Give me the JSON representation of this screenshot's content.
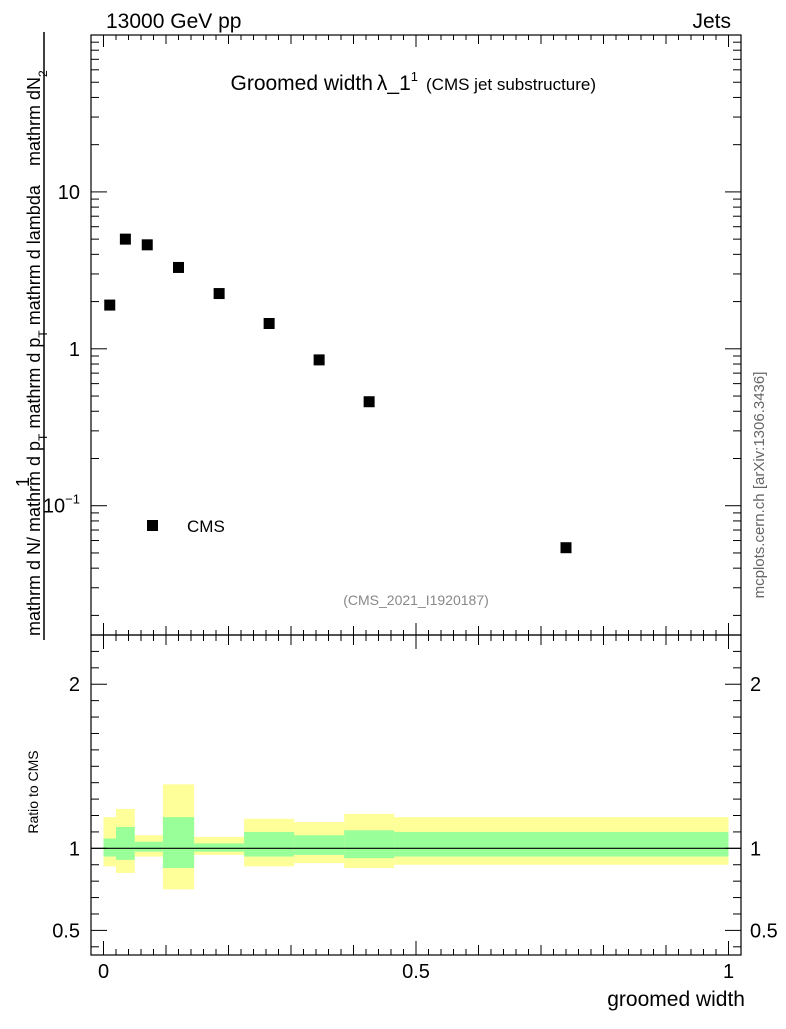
{
  "header": {
    "energy_label": "13000 GeV pp",
    "process_label": "Jets"
  },
  "side_label": "mcplots.cern.ch [arXiv:1306.3436]",
  "chart_data": [
    {
      "type": "scatter",
      "title": "Groomed width",
      "title_symbol": "λ_1",
      "title_superscript": "1",
      "subtitle": "(CMS jet substructure)",
      "analysis_tag": "(CMS_2021_I1920187)",
      "ylabel_numerator_parts": [
        {
          "t": "mathrm d",
          "s": ""
        },
        {
          "t": "N",
          "s": "2"
        }
      ],
      "ylabel_denominator_parts": [
        {
          "t": "mathrm d N",
          "s": ""
        },
        {
          "t": "/ mathrm d p",
          "s": "T"
        },
        {
          "t": " mathrm d p",
          "s": "T"
        },
        {
          "t": " mathrm d lambda",
          "s": ""
        }
      ],
      "ylabel_prefix": "1",
      "yscale": "log",
      "ylim": [
        0.015,
        100
      ],
      "xlim": [
        -0.02,
        1.02
      ],
      "yticks": [
        {
          "value": 0.1,
          "label": "10",
          "sup": "−1"
        },
        {
          "value": 1,
          "label": "1",
          "sup": ""
        },
        {
          "value": 10,
          "label": "10",
          "sup": ""
        }
      ],
      "series": [
        {
          "name": "CMS",
          "marker": "square",
          "color": "#000000",
          "x": [
            0.01,
            0.035,
            0.07,
            0.12,
            0.185,
            0.265,
            0.345,
            0.425,
            0.74
          ],
          "y": [
            1.9,
            5.0,
            4.6,
            3.3,
            2.25,
            1.45,
            0.85,
            0.46,
            0.054
          ]
        }
      ],
      "legend": "bottom-left"
    },
    {
      "type": "area",
      "ylabel": "Ratio to CMS",
      "xlabel": "groomed width",
      "ylim": [
        0.35,
        2.3
      ],
      "xlim": [
        -0.02,
        1.02
      ],
      "reference_line": 1,
      "xticks": [
        {
          "value": 0,
          "label": "0"
        },
        {
          "value": 0.5,
          "label": "0.5"
        },
        {
          "value": 1,
          "label": "1"
        }
      ],
      "yticks": [
        {
          "value": 0.5,
          "label": "0.5"
        },
        {
          "value": 1,
          "label": "1"
        },
        {
          "value": 2,
          "label": "2"
        }
      ],
      "bands": {
        "inner_color": "#99ff99",
        "outer_color": "#ffff99",
        "bins": [
          {
            "x0": 0.0,
            "x1": 0.02,
            "inner": [
              0.95,
              1.06
            ],
            "outer": [
              0.89,
              1.19
            ]
          },
          {
            "x0": 0.02,
            "x1": 0.05,
            "inner": [
              0.93,
              1.13
            ],
            "outer": [
              0.85,
              1.24
            ]
          },
          {
            "x0": 0.05,
            "x1": 0.095,
            "inner": [
              0.98,
              1.04
            ],
            "outer": [
              0.95,
              1.08
            ]
          },
          {
            "x0": 0.095,
            "x1": 0.145,
            "inner": [
              0.88,
              1.19
            ],
            "outer": [
              0.75,
              1.39
            ]
          },
          {
            "x0": 0.145,
            "x1": 0.225,
            "inner": [
              0.98,
              1.03
            ],
            "outer": [
              0.96,
              1.07
            ]
          },
          {
            "x0": 0.225,
            "x1": 0.305,
            "inner": [
              0.95,
              1.1
            ],
            "outer": [
              0.89,
              1.18
            ]
          },
          {
            "x0": 0.305,
            "x1": 0.385,
            "inner": [
              0.96,
              1.08
            ],
            "outer": [
              0.91,
              1.16
            ]
          },
          {
            "x0": 0.385,
            "x1": 0.465,
            "inner": [
              0.94,
              1.11
            ],
            "outer": [
              0.88,
              1.21
            ]
          },
          {
            "x0": 0.465,
            "x1": 1.0,
            "inner": [
              0.95,
              1.1
            ],
            "outer": [
              0.9,
              1.19
            ]
          }
        ]
      }
    }
  ]
}
